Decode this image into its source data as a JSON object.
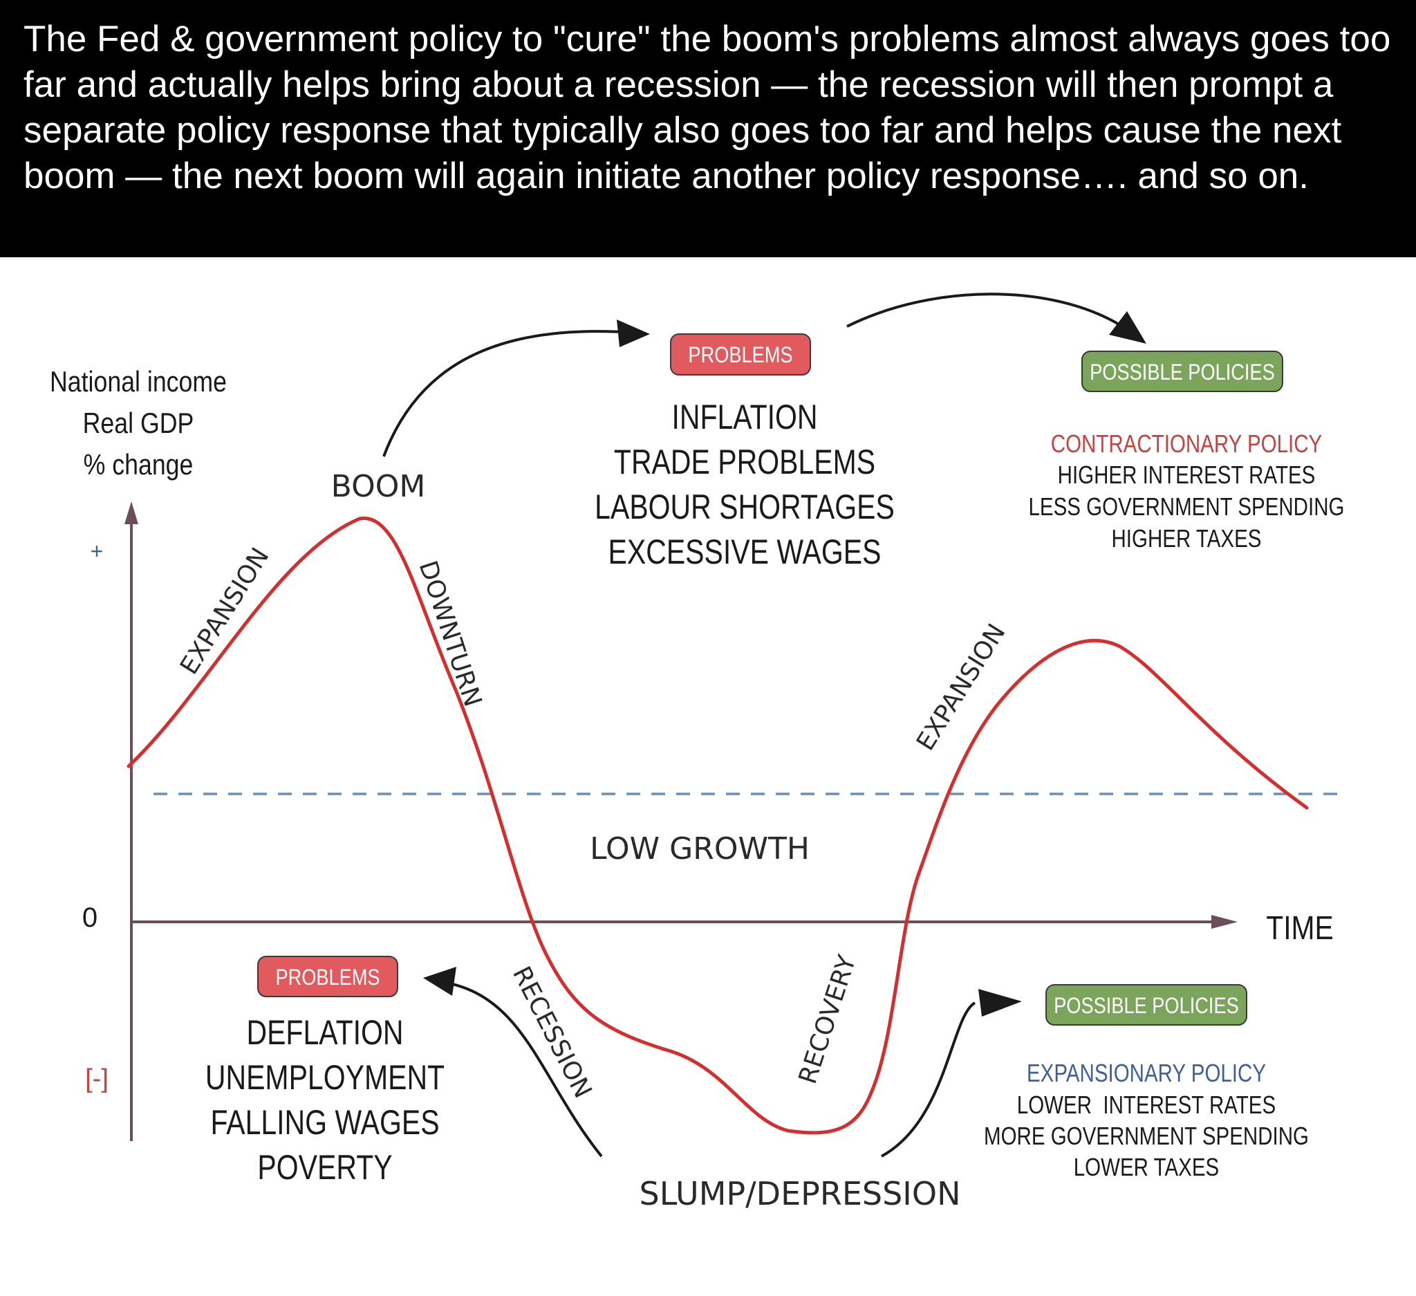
{
  "caption": "The Fed & government policy to \"cure\" the boom's problems almost always goes too far and actually helps bring about a recession — the recession will then prompt a separate policy response that typically also goes too far and helps cause the next boom — the next boom will again initiate another policy response…. and so on.",
  "axes": {
    "y_label_line1": "National income",
    "y_label_line2": "Real GDP",
    "y_label_line3": "% change",
    "plus": "+",
    "zero": "0",
    "minus": "[-]",
    "x_label": "TIME"
  },
  "phases": {
    "boom": "BOOM",
    "expansion_left": "EXPANSION",
    "downturn": "DOWNTURN",
    "low_growth": "LOW GROWTH",
    "recession": "RECESSION",
    "slump": "SLUMP/DEPRESSION",
    "recovery": "RECOVERY",
    "expansion_right": "EXPANSION"
  },
  "boom_problems": {
    "badge": "PROBLEMS",
    "items": [
      "INFLATION",
      "TRADE PROBLEMS",
      "LABOUR SHORTAGES",
      "EXCESSIVE WAGES"
    ]
  },
  "boom_policies": {
    "badge": "POSSIBLE POLICIES",
    "title": "CONTRACTIONARY POLICY",
    "items": [
      "HIGHER INTEREST RATES",
      "LESS GOVERNMENT SPENDING",
      "HIGHER TAXES"
    ]
  },
  "slump_problems": {
    "badge": "PROBLEMS",
    "items": [
      "DEFLATION",
      "UNEMPLOYMENT",
      "FALLING WAGES",
      "POVERTY"
    ]
  },
  "slump_policies": {
    "badge": "POSSIBLE POLICIES",
    "title": "EXPANSIONARY POLICY",
    "items": [
      "LOWER  INTEREST RATES",
      "MORE GOVERNMENT SPENDING",
      "LOWER TAXES"
    ]
  },
  "colors": {
    "curve": "#d32f2f",
    "axis": "#6b4f55",
    "dashed": "#6a8fb5",
    "problems_badge": "#e05a5e",
    "policies_badge": "#7ba55a",
    "contractionary": "#c8413f",
    "expansionary": "#3f5f98",
    "arrow": "#1a1a1a"
  }
}
